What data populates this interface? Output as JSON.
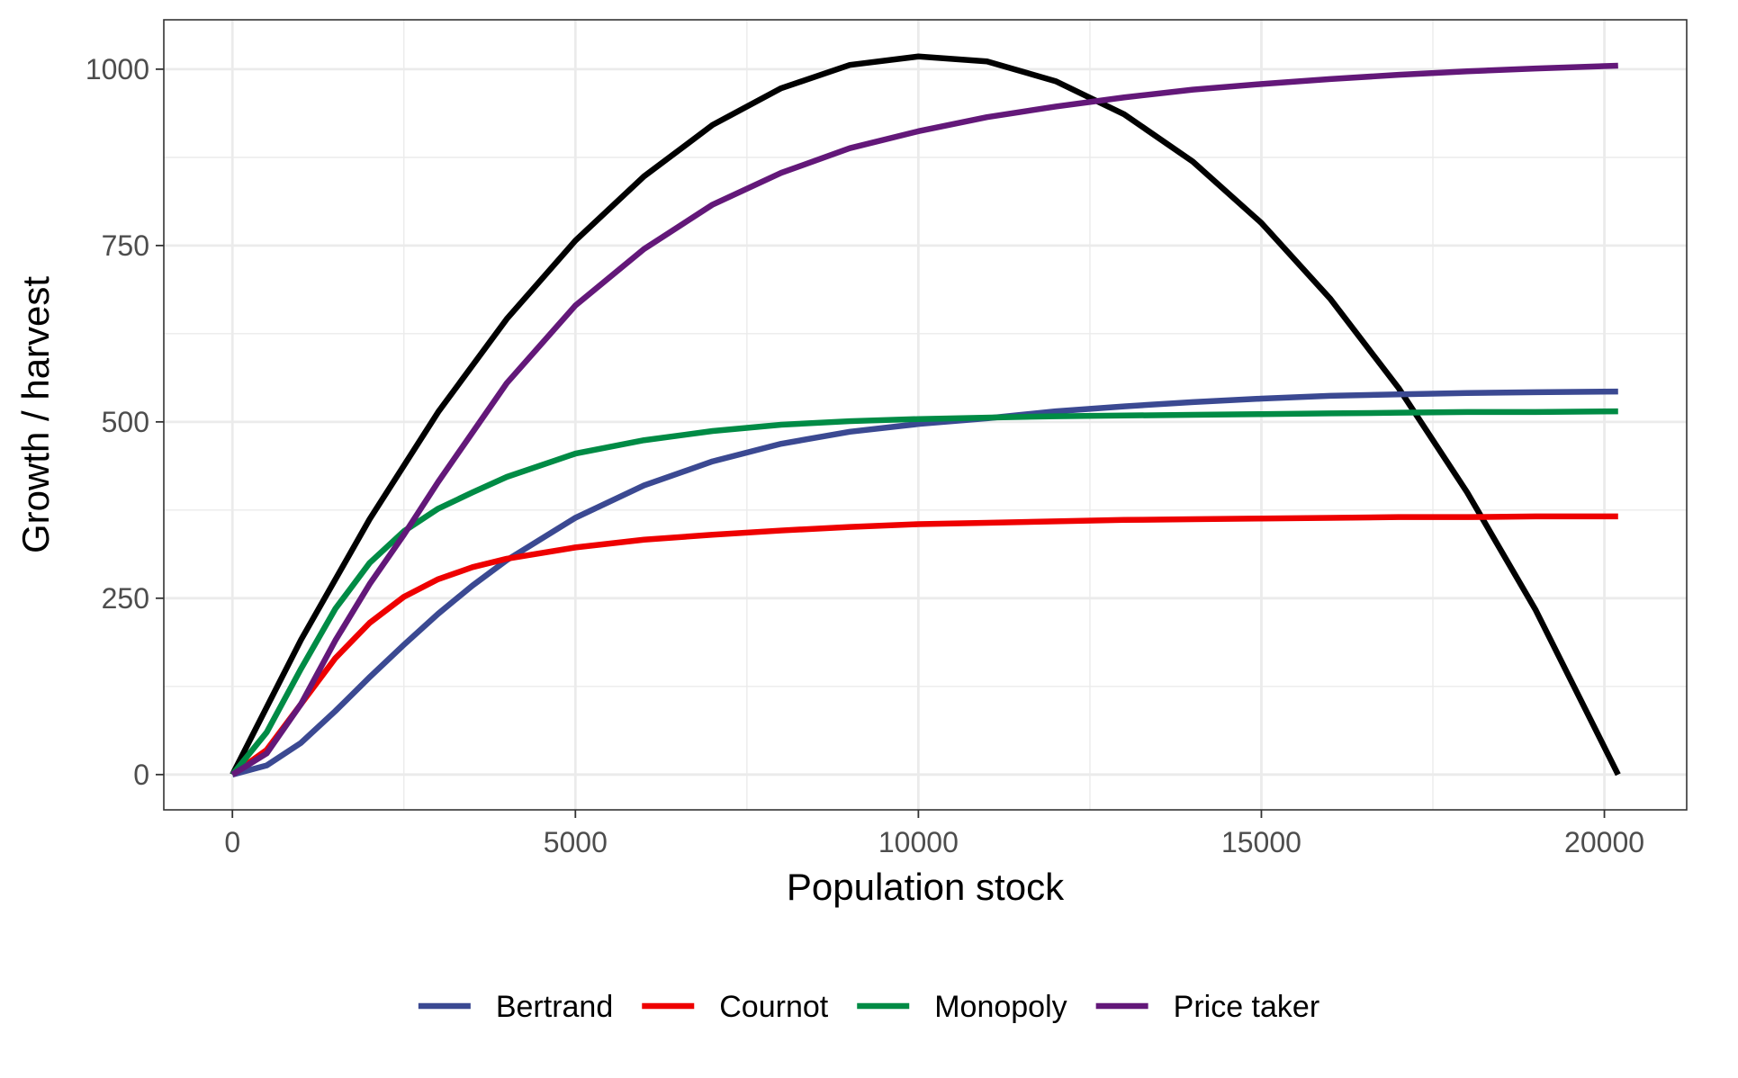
{
  "chart_data": {
    "type": "line",
    "title": "",
    "xlabel": "Population stock",
    "ylabel": "Growth / harvest",
    "xlim": [
      -1000,
      21200
    ],
    "ylim": [
      -50,
      1070
    ],
    "x_ticks": [
      0,
      5000,
      10000,
      15000,
      20000
    ],
    "x_tick_labels": [
      "0",
      "5000",
      "10000",
      "15000",
      "20000"
    ],
    "x_minor_ticks": [
      2500,
      7500,
      12500,
      17500
    ],
    "y_ticks": [
      0,
      250,
      500,
      750,
      1000
    ],
    "y_tick_labels": [
      "0",
      "250",
      "500",
      "750",
      "1000"
    ],
    "y_minor_ticks": [
      125,
      375,
      625,
      875
    ],
    "grid": true,
    "legend_position": "bottom",
    "growth_curve": {
      "color": "#000000",
      "points": [
        [
          0,
          0
        ],
        [
          1000,
          191
        ],
        [
          2000,
          362
        ],
        [
          3000,
          514
        ],
        [
          4000,
          646
        ],
        [
          5000,
          757
        ],
        [
          6000,
          848
        ],
        [
          7000,
          921
        ],
        [
          8000,
          973
        ],
        [
          9000,
          1006
        ],
        [
          10000,
          1018
        ],
        [
          11000,
          1011
        ],
        [
          12000,
          983
        ],
        [
          13000,
          936
        ],
        [
          14000,
          869
        ],
        [
          15000,
          782
        ],
        [
          16000,
          675
        ],
        [
          17000,
          548
        ],
        [
          18000,
          400
        ],
        [
          19000,
          233
        ],
        [
          20200,
          0
        ]
      ]
    },
    "series": [
      {
        "name": "Bertrand",
        "color": "#3b4992",
        "points": [
          [
            0,
            0
          ],
          [
            500,
            13
          ],
          [
            1000,
            45
          ],
          [
            1500,
            90
          ],
          [
            2000,
            138
          ],
          [
            2500,
            184
          ],
          [
            3000,
            228
          ],
          [
            3500,
            268
          ],
          [
            4000,
            304
          ],
          [
            5000,
            364
          ],
          [
            6000,
            410
          ],
          [
            7000,
            444
          ],
          [
            8000,
            469
          ],
          [
            9000,
            486
          ],
          [
            10000,
            497
          ],
          [
            11000,
            505
          ],
          [
            12000,
            515
          ],
          [
            13000,
            522
          ],
          [
            14000,
            528
          ],
          [
            15000,
            533
          ],
          [
            16000,
            537
          ],
          [
            17000,
            539
          ],
          [
            18000,
            541
          ],
          [
            19000,
            542
          ],
          [
            20200,
            543
          ]
        ]
      },
      {
        "name": "Cournot",
        "color": "#ee0000",
        "points": [
          [
            0,
            0
          ],
          [
            500,
            35
          ],
          [
            1000,
            100
          ],
          [
            1500,
            165
          ],
          [
            2000,
            215
          ],
          [
            2500,
            252
          ],
          [
            3000,
            277
          ],
          [
            3500,
            294
          ],
          [
            4000,
            306
          ],
          [
            5000,
            322
          ],
          [
            6000,
            333
          ],
          [
            7000,
            340
          ],
          [
            8000,
            346
          ],
          [
            9000,
            351
          ],
          [
            10000,
            355
          ],
          [
            11000,
            357
          ],
          [
            12000,
            359
          ],
          [
            13000,
            361
          ],
          [
            14000,
            362
          ],
          [
            15000,
            363
          ],
          [
            16000,
            364
          ],
          [
            17000,
            365
          ],
          [
            18000,
            365
          ],
          [
            19000,
            366
          ],
          [
            20200,
            366
          ]
        ]
      },
      {
        "name": "Monopoly",
        "color": "#008b45",
        "points": [
          [
            0,
            0
          ],
          [
            500,
            60
          ],
          [
            1000,
            150
          ],
          [
            1500,
            235
          ],
          [
            2000,
            300
          ],
          [
            2500,
            345
          ],
          [
            3000,
            377
          ],
          [
            3500,
            400
          ],
          [
            4000,
            422
          ],
          [
            5000,
            455
          ],
          [
            6000,
            474
          ],
          [
            7000,
            487
          ],
          [
            8000,
            496
          ],
          [
            9000,
            501
          ],
          [
            10000,
            504
          ],
          [
            11000,
            506
          ],
          [
            12000,
            508
          ],
          [
            13000,
            509
          ],
          [
            14000,
            510
          ],
          [
            15000,
            511
          ],
          [
            16000,
            512
          ],
          [
            17000,
            513
          ],
          [
            18000,
            514
          ],
          [
            19000,
            514
          ],
          [
            20200,
            515
          ]
        ]
      },
      {
        "name": "Price taker",
        "color": "#631879",
        "points": [
          [
            0,
            0
          ],
          [
            500,
            30
          ],
          [
            1000,
            100
          ],
          [
            1500,
            190
          ],
          [
            2000,
            270
          ],
          [
            2500,
            340
          ],
          [
            3000,
            415
          ],
          [
            3500,
            485
          ],
          [
            4000,
            555
          ],
          [
            5000,
            665
          ],
          [
            6000,
            745
          ],
          [
            7000,
            808
          ],
          [
            8000,
            853
          ],
          [
            9000,
            888
          ],
          [
            10000,
            912
          ],
          [
            11000,
            932
          ],
          [
            12000,
            947
          ],
          [
            13000,
            960
          ],
          [
            14000,
            971
          ],
          [
            15000,
            979
          ],
          [
            16000,
            986
          ],
          [
            17000,
            992
          ],
          [
            18000,
            997
          ],
          [
            19000,
            1001
          ],
          [
            20200,
            1005
          ]
        ]
      }
    ]
  }
}
